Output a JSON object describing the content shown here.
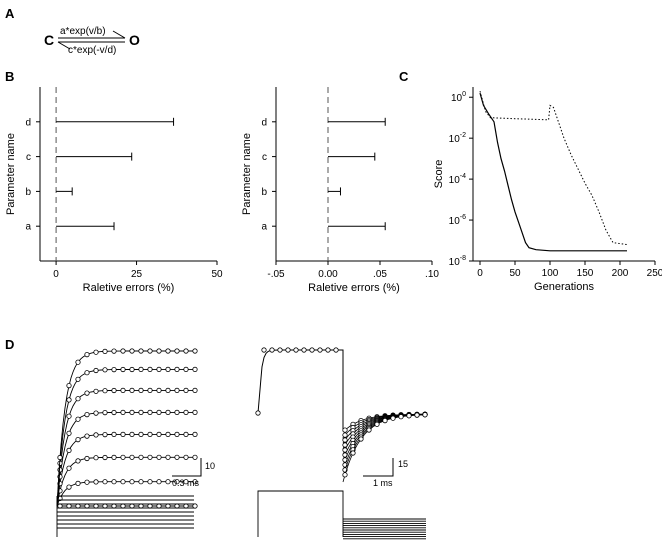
{
  "panels": {
    "A": "A",
    "B": "B",
    "C": "C",
    "D": "D"
  },
  "scheme": {
    "state_left": "C",
    "state_right": "O",
    "forward_rate": "a*exp(v/b)",
    "backward_rate": "c*exp(-v/d)"
  },
  "chart_data": [
    {
      "type": "bar",
      "panel": "B-left",
      "categories": [
        "a",
        "b",
        "c",
        "d"
      ],
      "values": [
        18,
        5,
        23.5,
        36.5
      ],
      "xlabel": "Raletive errors (%)",
      "ylabel": "Parameter name",
      "xlim": [
        -5,
        50
      ],
      "xticks": [
        "0",
        "25",
        "50"
      ],
      "xtick_values": [
        0,
        25,
        50
      ]
    },
    {
      "type": "bar",
      "panel": "B-right",
      "categories": [
        "a",
        "b",
        "c",
        "d"
      ],
      "values": [
        0.055,
        0.012,
        0.045,
        0.055
      ],
      "xlabel": "Raletive errors (%)",
      "ylabel": "Parameter name",
      "xlim": [
        -0.05,
        0.1
      ],
      "xticks": [
        "-.05",
        "0.00",
        ".05",
        ".10"
      ],
      "xtick_values": [
        -0.05,
        0,
        0.05,
        0.1
      ]
    },
    {
      "type": "line",
      "panel": "C",
      "xlabel": "Generations",
      "ylabel": "Score",
      "xlim": [
        -10,
        250
      ],
      "xticks": [
        "0",
        "50",
        "100",
        "150",
        "200",
        "250"
      ],
      "xtick_values": [
        0,
        50,
        100,
        150,
        200,
        250
      ],
      "y_scale": "log",
      "ylim_log10": [
        -8,
        0.5
      ],
      "ytick_bases": [
        "10",
        "10",
        "10",
        "10",
        "10"
      ],
      "ytick_exponents": [
        "0",
        "-2",
        "-4",
        "-6",
        "-8"
      ],
      "ytick_log_values": [
        0,
        -2,
        -4,
        -6,
        -8
      ],
      "series": [
        {
          "style": "solid",
          "x": [
            0,
            5,
            12,
            20,
            25,
            30,
            35,
            40,
            45,
            50,
            55,
            60,
            65,
            70,
            80,
            100,
            150,
            210
          ],
          "log10_y": [
            0.2,
            -0.4,
            -0.8,
            -1.2,
            -2.2,
            -3.0,
            -3.6,
            -4.3,
            -5.0,
            -5.6,
            -6.1,
            -6.6,
            -7.1,
            -7.35,
            -7.45,
            -7.5,
            -7.5,
            -7.5
          ]
        },
        {
          "style": "dotted",
          "x": [
            0,
            8,
            15,
            50,
            98,
            100,
            105,
            112,
            120,
            130,
            140,
            150,
            160,
            170,
            180,
            190,
            210
          ],
          "log10_y": [
            0.3,
            -0.7,
            -1.0,
            -1.05,
            -1.1,
            -0.4,
            -0.5,
            -1.2,
            -2.0,
            -2.8,
            -3.5,
            -4.2,
            -4.8,
            -5.6,
            -6.5,
            -7.1,
            -7.2
          ]
        }
      ]
    }
  ],
  "traces": {
    "left_scale_value": "10",
    "left_scale_time": "0.3 ms",
    "right_scale_value": "15",
    "right_scale_time": "1 ms",
    "left_final_levels": [
      0,
      0.157,
      0.314,
      0.462,
      0.604,
      0.746,
      0.881,
      1
    ],
    "right_tail_start_levels": [
      0,
      0.111,
      0.222,
      0.333,
      0.444,
      0.556,
      0.667,
      0.778,
      0.889,
      1
    ]
  }
}
